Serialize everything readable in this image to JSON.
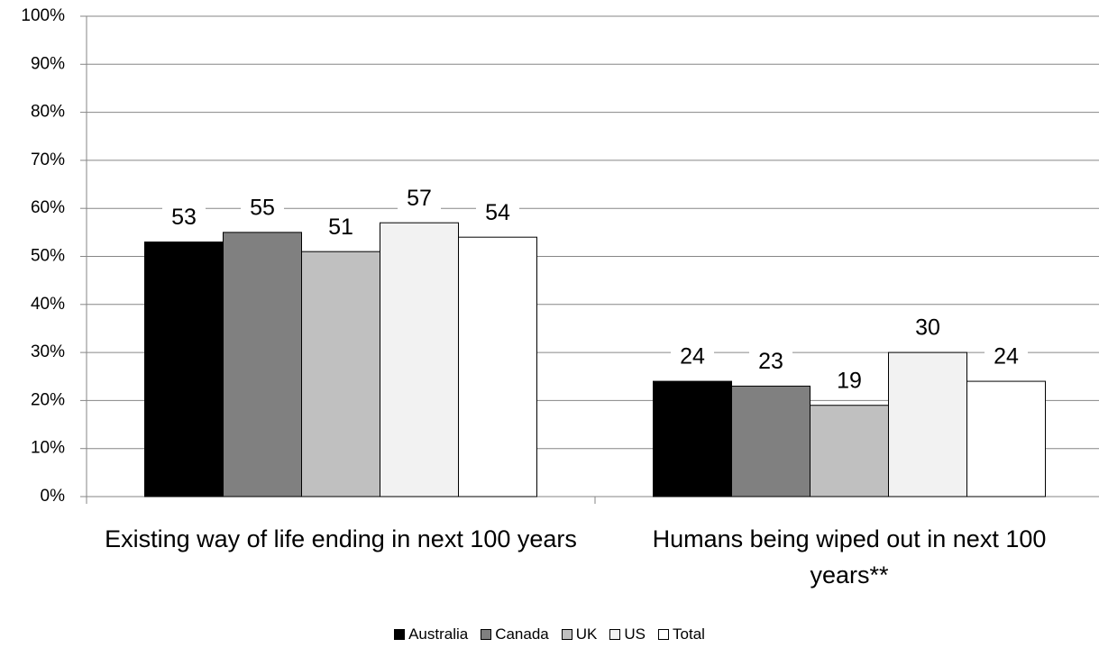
{
  "chart_data": {
    "type": "bar",
    "categories": [
      "Existing way of life ending in next 100 years",
      "Humans being wiped out in next 100 years**"
    ],
    "series": [
      {
        "name": "Australia",
        "color": "#000000",
        "values": [
          53,
          24
        ]
      },
      {
        "name": "Canada",
        "color": "#808080",
        "values": [
          55,
          23
        ]
      },
      {
        "name": "UK",
        "color": "#c0c0c0",
        "values": [
          51,
          19
        ]
      },
      {
        "name": "US",
        "color": "#f2f2f2",
        "values": [
          57,
          30
        ]
      },
      {
        "name": "Total",
        "color": "#ffffff",
        "values": [
          54,
          24
        ]
      }
    ],
    "ylim": [
      0,
      100
    ],
    "yticks": [
      {
        "value": 0,
        "label": "0%"
      },
      {
        "value": 10,
        "label": "10%"
      },
      {
        "value": 20,
        "label": "20%"
      },
      {
        "value": 30,
        "label": "30%"
      },
      {
        "value": 40,
        "label": "40%"
      },
      {
        "value": 50,
        "label": "50%"
      },
      {
        "value": 60,
        "label": "60%"
      },
      {
        "value": 70,
        "label": "70%"
      },
      {
        "value": 80,
        "label": "80%"
      },
      {
        "value": 90,
        "label": "90%"
      },
      {
        "value": 100,
        "label": "100%"
      }
    ],
    "grid": true,
    "legend": "bottom"
  }
}
